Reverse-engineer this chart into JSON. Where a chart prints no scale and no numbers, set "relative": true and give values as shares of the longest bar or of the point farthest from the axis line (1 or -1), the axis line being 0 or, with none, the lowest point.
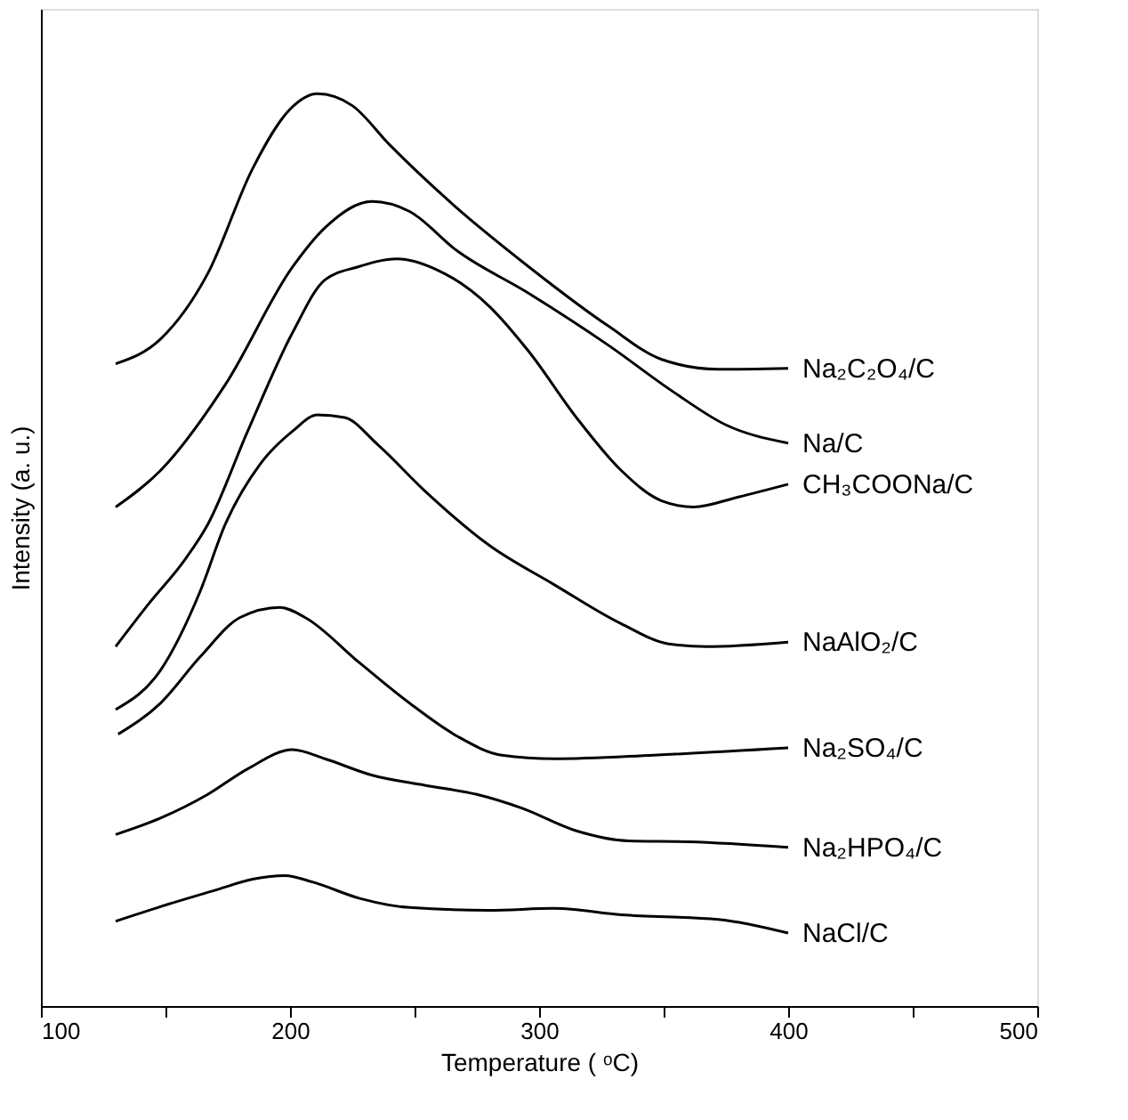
{
  "chart_data": {
    "type": "line",
    "relative": true,
    "xlabel": "Temperature ( ᵒC)",
    "ylabel": "Intensity (a. u.)",
    "xlim": [
      100,
      500
    ],
    "xticks": [
      100,
      {
        "value": 150,
        "label": null
      },
      200,
      {
        "value": 250,
        "label": null
      },
      300,
      {
        "value": 350,
        "label": null
      },
      400,
      {
        "value": 450,
        "label": null
      },
      500
    ],
    "grid": false,
    "legend": false,
    "line_style": "solid",
    "marker": "none",
    "tick_labels": "x",
    "series": [
      {
        "name": "Na₂C₂O₄/C",
        "color": "#000000",
        "x": [
          130,
          148,
          167,
          185,
          200,
          211,
          225,
          240,
          264,
          296,
          328,
          349,
          372,
          400
        ],
        "values": [
          0.704,
          0.731,
          0.803,
          0.918,
          0.983,
          1.0,
          0.987,
          0.944,
          0.882,
          0.81,
          0.745,
          0.709,
          0.698,
          0.699
        ]
      },
      {
        "name": "Na/C",
        "color": "#000000",
        "x": [
          130,
          148,
          174,
          201,
          214,
          233,
          248,
          267,
          296,
          328,
          354,
          375,
          400
        ],
        "values": [
          0.547,
          0.587,
          0.681,
          0.81,
          0.853,
          0.882,
          0.871,
          0.828,
          0.781,
          0.724,
          0.673,
          0.637,
          0.617
        ]
      },
      {
        "name": "CH₃COONa/C",
        "color": "#000000",
        "x": [
          130,
          143,
          158,
          167,
          183,
          201,
          214,
          227,
          243,
          259,
          280,
          296,
          315,
          333,
          349,
          362,
          380,
          400
        ],
        "values": [
          0.394,
          0.44,
          0.49,
          0.528,
          0.63,
          0.738,
          0.796,
          0.81,
          0.819,
          0.807,
          0.767,
          0.717,
          0.645,
          0.587,
          0.554,
          0.547,
          0.558,
          0.572
        ]
      },
      {
        "name": "NaAlO₂/C",
        "color": "#000000",
        "x": [
          130,
          148,
          164,
          174,
          188,
          201,
          211,
          222,
          235,
          254,
          280,
          306,
          333,
          352,
          367,
          400
        ],
        "values": [
          0.325,
          0.368,
          0.455,
          0.528,
          0.594,
          0.63,
          0.648,
          0.645,
          0.616,
          0.565,
          0.505,
          0.462,
          0.419,
          0.397,
          0.394,
          0.399
        ]
      },
      {
        "name": "Na₂SO₄/C",
        "color": "#000000",
        "x": [
          131,
          148,
          164,
          180,
          196,
          206,
          228,
          248,
          267,
          285,
          306,
          346,
          400
        ],
        "values": [
          0.298,
          0.332,
          0.383,
          0.426,
          0.437,
          0.426,
          0.376,
          0.332,
          0.296,
          0.275,
          0.271,
          0.275,
          0.283
        ]
      },
      {
        "name": "Na₂HPO₄/C",
        "color": "#000000",
        "x": [
          130,
          148,
          167,
          183,
          201,
          214,
          233,
          254,
          275,
          293,
          315,
          336,
          360,
          400
        ],
        "values": [
          0.188,
          0.206,
          0.232,
          0.26,
          0.281,
          0.271,
          0.253,
          0.242,
          0.232,
          0.217,
          0.192,
          0.181,
          0.18,
          0.174
        ]
      },
      {
        "name": "NaCl/C",
        "color": "#000000",
        "x": [
          130,
          148,
          170,
          185,
          198,
          209,
          228,
          248,
          280,
          306,
          333,
          372,
          400
        ],
        "values": [
          0.093,
          0.109,
          0.127,
          0.139,
          0.143,
          0.136,
          0.118,
          0.108,
          0.105,
          0.107,
          0.1,
          0.095,
          0.08
        ]
      }
    ]
  }
}
